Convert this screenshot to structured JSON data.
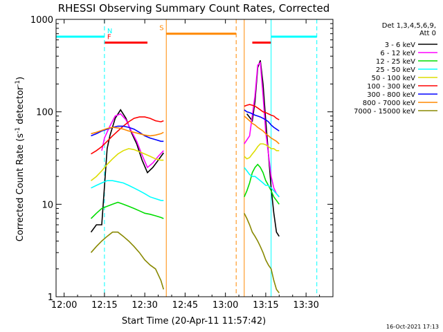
{
  "chart_data": {
    "type": "line",
    "title": "RHESSI Observing Summary Count Rates, Corrected",
    "xlabel": "Start Time (20-Apr-11 11:57:42)",
    "ylabel": "Corrected Count Rate (s",
    "ylabel_sup1": "-1",
    "ylabel_mid": " detector",
    "ylabel_sup2": "-1",
    "ylabel_end": ")",
    "yscale": "log",
    "ylim": [
      1,
      1000
    ],
    "xlim_minutes": [
      -3,
      100
    ],
    "x_ticks": [
      {
        "m": 0,
        "label": "12:00"
      },
      {
        "m": 15,
        "label": "12:15"
      },
      {
        "m": 30,
        "label": "12:30"
      },
      {
        "m": 45,
        "label": "12:45"
      },
      {
        "m": 60,
        "label": "13:00"
      },
      {
        "m": 75,
        "label": "13:15"
      },
      {
        "m": 90,
        "label": "13:30"
      }
    ],
    "y_ticks": [
      {
        "v": 1,
        "label": "1"
      },
      {
        "v": 10,
        "label": "10"
      },
      {
        "v": 100,
        "label": "100"
      },
      {
        "v": 1000,
        "label": "1000"
      }
    ],
    "legend_header": [
      "Det 1,3,4,5,6,9,",
      "Att 0"
    ],
    "legend_placement": "right",
    "series": [
      {
        "name": "3 - 6 keV",
        "color": "#000000",
        "points": [
          [
            10,
            5
          ],
          [
            12,
            6
          ],
          [
            14,
            6
          ],
          [
            16,
            40
          ],
          [
            17,
            55
          ],
          [
            19,
            85
          ],
          [
            21,
            105
          ],
          [
            23,
            85
          ],
          [
            25,
            60
          ],
          [
            27,
            45
          ],
          [
            29,
            30
          ],
          [
            31,
            22
          ],
          [
            33,
            25
          ],
          [
            35,
            30
          ],
          [
            37,
            36
          ]
        ]
      },
      {
        "name": "6 - 12 keV",
        "color": "#ff00ff",
        "points": [
          [
            14,
            38
          ],
          [
            15,
            52
          ],
          [
            17,
            70
          ],
          [
            19,
            90
          ],
          [
            21,
            95
          ],
          [
            23,
            82
          ],
          [
            25,
            62
          ],
          [
            27,
            48
          ],
          [
            29,
            34
          ],
          [
            31,
            25
          ],
          [
            33,
            28
          ],
          [
            35,
            33
          ],
          [
            37,
            38
          ]
        ]
      },
      {
        "name": "12 - 25 keV",
        "color": "#00dd00",
        "points": [
          [
            10,
            7
          ],
          [
            12,
            8
          ],
          [
            14,
            9
          ],
          [
            16,
            9.5
          ],
          [
            18,
            10
          ],
          [
            20,
            10.5
          ],
          [
            22,
            10
          ],
          [
            24,
            9.5
          ],
          [
            26,
            9
          ],
          [
            28,
            8.5
          ],
          [
            30,
            8
          ],
          [
            32,
            7.8
          ],
          [
            34,
            7.5
          ],
          [
            36,
            7.2
          ],
          [
            37,
            7
          ]
        ]
      },
      {
        "name": "25 - 50 keV",
        "color": "#00ffff",
        "points": [
          [
            10,
            15
          ],
          [
            12,
            16
          ],
          [
            14,
            17
          ],
          [
            16,
            18
          ],
          [
            18,
            18
          ],
          [
            20,
            17.5
          ],
          [
            22,
            17
          ],
          [
            24,
            16
          ],
          [
            26,
            15
          ],
          [
            28,
            14
          ],
          [
            30,
            13
          ],
          [
            32,
            12
          ],
          [
            34,
            11.5
          ],
          [
            36,
            11
          ],
          [
            37,
            11
          ]
        ]
      },
      {
        "name": "50 - 100 keV",
        "color": "#dddd00",
        "points": [
          [
            10,
            18
          ],
          [
            12,
            20
          ],
          [
            14,
            23
          ],
          [
            16,
            27
          ],
          [
            18,
            31
          ],
          [
            20,
            35
          ],
          [
            22,
            38
          ],
          [
            24,
            40
          ],
          [
            26,
            39
          ],
          [
            28,
            37
          ],
          [
            30,
            35
          ],
          [
            32,
            33
          ],
          [
            34,
            31
          ],
          [
            36,
            30
          ],
          [
            37,
            30
          ]
        ]
      },
      {
        "name": "100 - 300 keV",
        "color": "#ff0000",
        "points": [
          [
            10,
            35
          ],
          [
            12,
            38
          ],
          [
            14,
            42
          ],
          [
            16,
            48
          ],
          [
            18,
            55
          ],
          [
            20,
            62
          ],
          [
            22,
            70
          ],
          [
            24,
            78
          ],
          [
            26,
            85
          ],
          [
            28,
            88
          ],
          [
            30,
            88
          ],
          [
            32,
            85
          ],
          [
            34,
            80
          ],
          [
            36,
            78
          ],
          [
            37,
            80
          ]
        ]
      },
      {
        "name": "300 - 800 keV",
        "color": "#0000ff",
        "points": [
          [
            10,
            55
          ],
          [
            12,
            58
          ],
          [
            14,
            62
          ],
          [
            16,
            65
          ],
          [
            18,
            68
          ],
          [
            20,
            70
          ],
          [
            22,
            70
          ],
          [
            24,
            68
          ],
          [
            26,
            65
          ],
          [
            28,
            60
          ],
          [
            30,
            55
          ],
          [
            32,
            52
          ],
          [
            34,
            50
          ],
          [
            36,
            48
          ],
          [
            37,
            48
          ]
        ]
      },
      {
        "name": "800 - 7000 keV",
        "color": "#ff8800",
        "points": [
          [
            10,
            58
          ],
          [
            12,
            60
          ],
          [
            14,
            63
          ],
          [
            16,
            66
          ],
          [
            18,
            68
          ],
          [
            20,
            67
          ],
          [
            22,
            65
          ],
          [
            24,
            62
          ],
          [
            26,
            60
          ],
          [
            28,
            58
          ],
          [
            30,
            56
          ],
          [
            32,
            55
          ],
          [
            34,
            56
          ],
          [
            36,
            58
          ],
          [
            37,
            60
          ]
        ]
      },
      {
        "name": "7000 - 15000 keV",
        "color": "#888800",
        "points": [
          [
            10,
            3
          ],
          [
            12,
            3.5
          ],
          [
            14,
            4
          ],
          [
            16,
            4.5
          ],
          [
            18,
            5
          ],
          [
            20,
            5
          ],
          [
            22,
            4.5
          ],
          [
            24,
            4
          ],
          [
            26,
            3.5
          ],
          [
            28,
            3
          ],
          [
            30,
            2.5
          ],
          [
            32,
            2.2
          ],
          [
            34,
            2
          ],
          [
            36,
            1.5
          ],
          [
            37,
            1.2
          ]
        ]
      }
    ],
    "segments_late": [
      {
        "points": [
          [
            68,
            95
          ],
          [
            70,
            80
          ],
          [
            71,
            130
          ],
          [
            72,
            300
          ],
          [
            73,
            360
          ],
          [
            74,
            200
          ],
          [
            75,
            80
          ],
          [
            76,
            35
          ],
          [
            77,
            15
          ],
          [
            78,
            8
          ],
          [
            79,
            5
          ],
          [
            80,
            4.5
          ]
        ],
        "color": "#000000"
      },
      {
        "points": [
          [
            67,
            45
          ],
          [
            69,
            55
          ],
          [
            71,
            150
          ],
          [
            72,
            320
          ],
          [
            73,
            340
          ],
          [
            74,
            150
          ],
          [
            75,
            60
          ],
          [
            76,
            35
          ],
          [
            77,
            20
          ],
          [
            78,
            15
          ],
          [
            79,
            13
          ],
          [
            80,
            12
          ]
        ],
        "color": "#ff00ff"
      },
      {
        "points": [
          [
            67,
            12
          ],
          [
            68,
            14
          ],
          [
            69,
            17
          ],
          [
            70,
            22
          ],
          [
            71,
            25
          ],
          [
            72,
            27
          ],
          [
            73,
            25
          ],
          [
            74,
            22
          ],
          [
            75,
            18
          ],
          [
            76,
            16
          ],
          [
            77,
            14
          ],
          [
            78,
            12
          ],
          [
            79,
            11
          ],
          [
            80,
            10
          ]
        ],
        "color": "#00dd00"
      },
      {
        "points": [
          [
            67,
            25
          ],
          [
            68,
            23
          ],
          [
            69,
            21
          ],
          [
            70,
            20
          ],
          [
            71,
            20
          ],
          [
            72,
            19
          ],
          [
            73,
            18
          ],
          [
            74,
            17
          ],
          [
            75,
            16
          ],
          [
            76,
            16
          ],
          [
            77,
            15
          ],
          [
            78,
            14
          ],
          [
            79,
            13
          ],
          [
            80,
            12
          ]
        ],
        "color": "#00ffff"
      },
      {
        "points": [
          [
            67,
            33
          ],
          [
            68,
            31
          ],
          [
            69,
            32
          ],
          [
            70,
            35
          ],
          [
            71,
            38
          ],
          [
            72,
            42
          ],
          [
            73,
            45
          ],
          [
            74,
            45
          ],
          [
            75,
            44
          ],
          [
            76,
            42
          ],
          [
            77,
            40
          ],
          [
            78,
            40
          ],
          [
            79,
            38
          ],
          [
            80,
            38
          ]
        ],
        "color": "#dddd00"
      },
      {
        "points": [
          [
            67,
            115
          ],
          [
            68,
            118
          ],
          [
            69,
            120
          ],
          [
            70,
            118
          ],
          [
            71,
            115
          ],
          [
            72,
            110
          ],
          [
            73,
            105
          ],
          [
            74,
            100
          ],
          [
            75,
            98
          ],
          [
            76,
            95
          ],
          [
            77,
            92
          ],
          [
            78,
            90
          ],
          [
            79,
            85
          ],
          [
            80,
            82
          ]
        ],
        "color": "#ff0000"
      },
      {
        "points": [
          [
            67,
            105
          ],
          [
            68,
            100
          ],
          [
            69,
            98
          ],
          [
            70,
            95
          ],
          [
            71,
            92
          ],
          [
            72,
            90
          ],
          [
            73,
            88
          ],
          [
            74,
            85
          ],
          [
            75,
            82
          ],
          [
            76,
            78
          ],
          [
            77,
            72
          ],
          [
            78,
            68
          ],
          [
            79,
            65
          ],
          [
            80,
            62
          ]
        ],
        "color": "#0000ff"
      },
      {
        "points": [
          [
            67,
            90
          ],
          [
            68,
            85
          ],
          [
            69,
            80
          ],
          [
            70,
            75
          ],
          [
            71,
            72
          ],
          [
            72,
            68
          ],
          [
            73,
            65
          ],
          [
            74,
            62
          ],
          [
            75,
            58
          ],
          [
            76,
            55
          ],
          [
            77,
            52
          ],
          [
            78,
            50
          ],
          [
            79,
            48
          ],
          [
            80,
            45
          ]
        ],
        "color": "#ff8800"
      },
      {
        "points": [
          [
            67,
            8
          ],
          [
            68,
            7
          ],
          [
            69,
            6
          ],
          [
            70,
            5
          ],
          [
            71,
            4.5
          ],
          [
            72,
            4
          ],
          [
            73,
            3.5
          ],
          [
            74,
            3
          ],
          [
            75,
            2.5
          ],
          [
            76,
            2.2
          ],
          [
            77,
            2
          ],
          [
            78,
            1.5
          ],
          [
            79,
            1.2
          ],
          [
            80,
            1.1
          ]
        ],
        "color": "#888800"
      }
    ],
    "state_bars": [
      {
        "label": "",
        "color": "#00ffff",
        "ym": [
          -3,
          15
        ],
        "level": 650
      },
      {
        "label": "N",
        "color": "#00ffff",
        "ym": [
          15,
          15
        ],
        "level": 650
      },
      {
        "label": "F",
        "color": "#ff0000",
        "ym": [
          15,
          31
        ],
        "level": 560
      },
      {
        "label": "S",
        "color": "#ff8800",
        "ym": [
          38,
          64
        ],
        "level": 700
      },
      {
        "label": "",
        "color": "#ff0000",
        "ym": [
          70,
          77
        ],
        "level": 560
      },
      {
        "label": "",
        "color": "#00ffff",
        "ym": [
          77,
          94
        ],
        "level": 650
      }
    ],
    "footer": "16-Oct-2021 17:13"
  }
}
